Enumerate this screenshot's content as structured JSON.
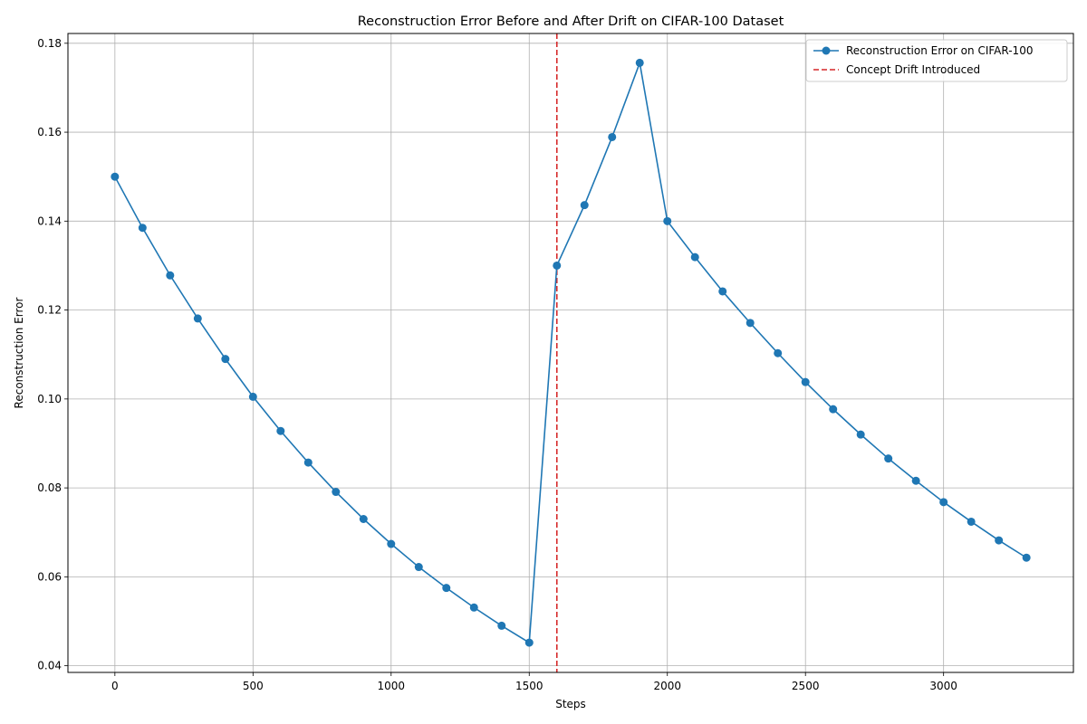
{
  "chart_data": {
    "type": "line",
    "title": "Reconstruction Error Before and After Drift on CIFAR-100 Dataset",
    "xlabel": "Steps",
    "ylabel": "Reconstruction Error",
    "xlim": [
      -170,
      3470
    ],
    "ylim": [
      0.0385,
      0.1822
    ],
    "xticks": [
      0,
      500,
      1000,
      1500,
      2000,
      2500,
      3000
    ],
    "yticks": [
      0.04,
      0.06,
      0.08,
      0.1,
      0.12,
      0.14,
      0.16,
      0.18
    ],
    "ytick_labels": [
      "0.04",
      "0.06",
      "0.08",
      "0.10",
      "0.12",
      "0.14",
      "0.16",
      "0.18"
    ],
    "grid": true,
    "legend_position": "top-right",
    "series": [
      {
        "name": "Reconstruction Error on CIFAR-100",
        "color": "#1f77b4",
        "marker": "circle",
        "x": [
          0,
          100,
          200,
          300,
          400,
          500,
          600,
          700,
          800,
          900,
          1000,
          1100,
          1200,
          1300,
          1400,
          1500,
          1600,
          1700,
          1800,
          1900,
          2000,
          2100,
          2200,
          2300,
          2400,
          2500,
          2600,
          2700,
          2800,
          2900,
          3000,
          3100,
          3200,
          3300
        ],
        "y": [
          0.15,
          0.1385,
          0.1278,
          0.1181,
          0.109,
          0.1005,
          0.0928,
          0.0857,
          0.0791,
          0.073,
          0.0674,
          0.0622,
          0.0575,
          0.0531,
          0.049,
          0.0452,
          0.13,
          0.1436,
          0.1589,
          0.1756,
          0.14,
          0.1319,
          0.1242,
          0.1171,
          0.1103,
          0.1038,
          0.0977,
          0.092,
          0.0866,
          0.0816,
          0.0768,
          0.0724,
          0.0682,
          0.0643
        ]
      }
    ],
    "annotations": [
      {
        "name": "Concept Drift Introduced",
        "type": "vline",
        "x": 1600,
        "color": "#d62728",
        "style": "dashed"
      }
    ]
  }
}
